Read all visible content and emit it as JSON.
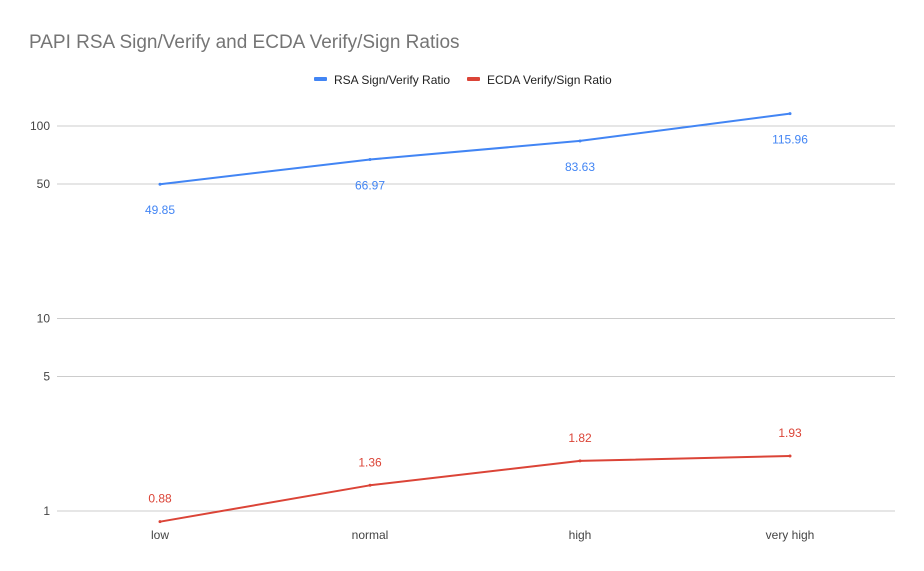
{
  "chart_data": {
    "type": "line",
    "title": "PAPI RSA Sign/Verify and ECDA Verify/Sign Ratios",
    "xlabel": "",
    "ylabel": "",
    "y_scale": "log",
    "ylim": [
      0.8,
      140
    ],
    "grid": true,
    "legend_position": "top",
    "categories": [
      "low",
      "normal",
      "high",
      "very high"
    ],
    "y_ticks": [
      1,
      5,
      10,
      50,
      100
    ],
    "series": [
      {
        "name": "RSA Sign/Verify Ratio",
        "color": "#4285f4",
        "values": [
          49.85,
          66.97,
          83.63,
          115.96
        ],
        "labels": [
          "49.85",
          "66.97",
          "83.63",
          "115.96"
        ]
      },
      {
        "name": "ECDA Verify/Sign Ratio",
        "color": "#db4437",
        "values": [
          0.88,
          1.36,
          1.82,
          1.93
        ],
        "labels": [
          "0.88",
          "1.36",
          "1.82",
          "1.93"
        ]
      }
    ]
  }
}
